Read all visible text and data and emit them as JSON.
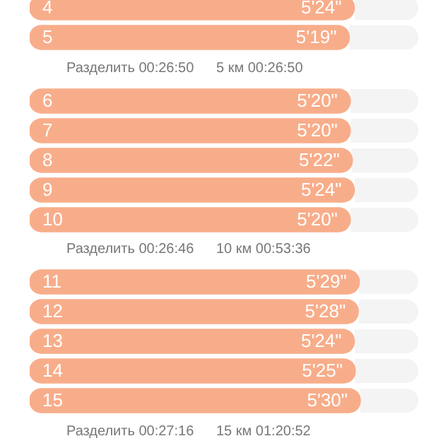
{
  "chart_data": [
    {
      "type": "bar",
      "orientation": "horizontal",
      "categories": [
        "4",
        "5"
      ],
      "values": [
        5.4,
        5.3167
      ],
      "value_labels": [
        "5'24\"",
        "5'19\""
      ],
      "color": "#f8ad8a",
      "tick_labels": "y",
      "annotations": [
        "Разделить 00:26:50",
        "5 км 00:26:50"
      ]
    },
    {
      "type": "bar",
      "orientation": "horizontal",
      "categories": [
        "6",
        "7",
        "8",
        "9",
        "10"
      ],
      "values": [
        5.3333,
        5.3333,
        5.3667,
        5.4,
        5.3333
      ],
      "value_labels": [
        "5'20\"",
        "5'20\"",
        "5'22\"",
        "5'24\"",
        "5'20\""
      ],
      "color": "#f8ad8a",
      "tick_labels": "y",
      "annotations": [
        "Разделить 00:26:46",
        "10 км 00:53:36"
      ]
    },
    {
      "type": "bar",
      "orientation": "horizontal",
      "categories": [
        "11",
        "12",
        "13",
        "14",
        "15"
      ],
      "values": [
        5.4833,
        5.4667,
        5.4,
        5.4167,
        5.5
      ],
      "value_labels": [
        "5'29\"",
        "5'28\"",
        "5'24\"",
        "5'25\"",
        "5'30\""
      ],
      "color": "#f8ad8a",
      "tick_labels": "y",
      "annotations": [
        "Разделить 00:27:16",
        "15 км 01:20:52"
      ]
    }
  ]
}
